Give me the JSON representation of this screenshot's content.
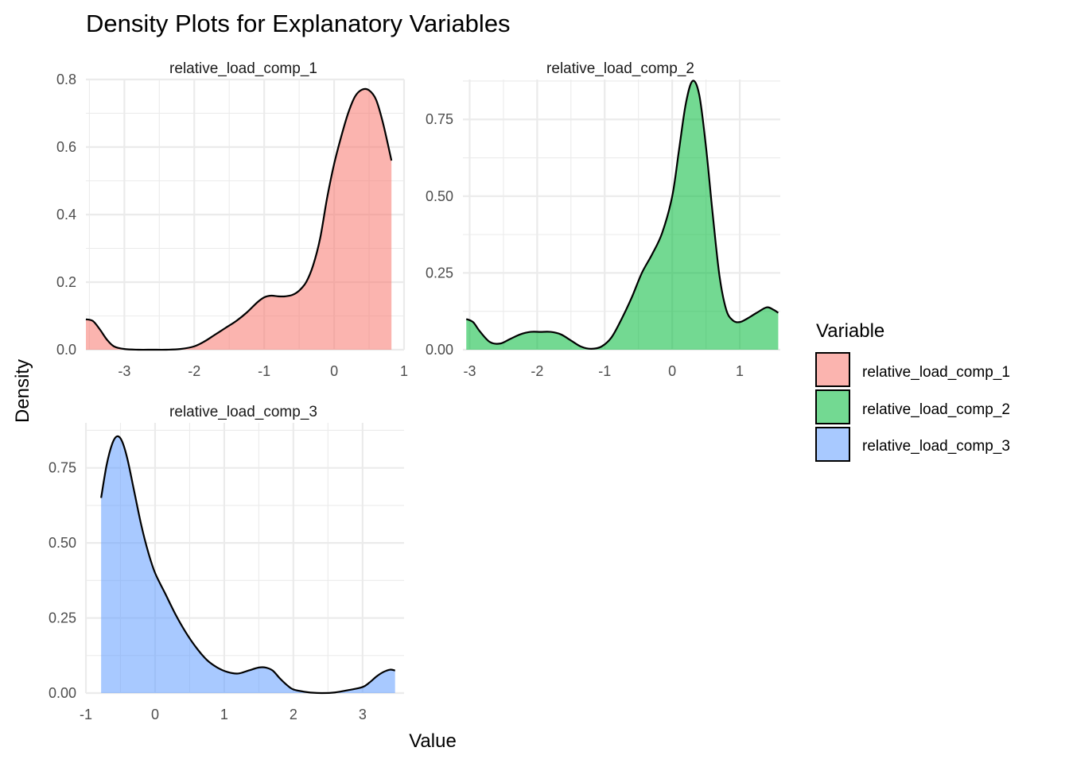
{
  "title": "Density Plots for Explanatory Variables",
  "xlabel": "Value",
  "ylabel": "Density",
  "legend": {
    "title": "Variable",
    "placement": "right",
    "items": [
      {
        "label": "relative_load_comp_1",
        "color": "#F8766D"
      },
      {
        "label": "relative_load_comp_2",
        "color": "#00BA38"
      },
      {
        "label": "relative_load_comp_3",
        "color": "#619CFF"
      }
    ]
  },
  "chart_data": [
    {
      "type": "area",
      "panel_title": "relative_load_comp_1",
      "color": "#F8766D",
      "xlim": [
        -3.55,
        1.0
      ],
      "ylim": [
        0,
        0.8
      ],
      "x_ticks": [
        -3,
        -2,
        -1,
        0,
        1
      ],
      "x_tick_labels": [
        "-3",
        "-2",
        "-1",
        "0",
        "1"
      ],
      "y_ticks": [
        0,
        0.2,
        0.4,
        0.6,
        0.8
      ],
      "y_tick_labels": [
        "0.0",
        "0.2",
        "0.4",
        "0.6",
        "0.8"
      ],
      "x": [
        -3.55,
        -3.45,
        -3.35,
        -3.25,
        -3.15,
        -3.0,
        -2.8,
        -2.6,
        -2.4,
        -2.2,
        -2.0,
        -1.85,
        -1.7,
        -1.55,
        -1.4,
        -1.25,
        -1.1,
        -1.0,
        -0.9,
        -0.8,
        -0.7,
        -0.6,
        -0.5,
        -0.4,
        -0.3,
        -0.2,
        -0.1,
        0.0,
        0.1,
        0.2,
        0.3,
        0.4,
        0.5,
        0.6,
        0.7,
        0.82
      ],
      "y": [
        0.09,
        0.085,
        0.06,
        0.03,
        0.01,
        0.002,
        0.0,
        0.0,
        0.0,
        0.002,
        0.01,
        0.025,
        0.045,
        0.065,
        0.085,
        0.11,
        0.14,
        0.155,
        0.16,
        0.158,
        0.158,
        0.162,
        0.175,
        0.2,
        0.25,
        0.33,
        0.45,
        0.55,
        0.63,
        0.7,
        0.75,
        0.77,
        0.768,
        0.74,
        0.67,
        0.56
      ]
    },
    {
      "type": "area",
      "panel_title": "relative_load_comp_2",
      "color": "#00BA38",
      "xlim": [
        -3.1,
        1.6
      ],
      "ylim": [
        0,
        0.88
      ],
      "x_ticks": [
        -3,
        -2,
        -1,
        0,
        1
      ],
      "x_tick_labels": [
        "-3",
        "-2",
        "-1",
        "0",
        "1"
      ],
      "y_ticks": [
        0,
        0.25,
        0.5,
        0.75
      ],
      "y_tick_labels": [
        "0.00",
        "0.25",
        "0.50",
        "0.75"
      ],
      "x": [
        -3.05,
        -2.95,
        -2.85,
        -2.7,
        -2.55,
        -2.4,
        -2.25,
        -2.1,
        -1.95,
        -1.8,
        -1.65,
        -1.5,
        -1.35,
        -1.2,
        -1.05,
        -0.9,
        -0.75,
        -0.6,
        -0.45,
        -0.3,
        -0.15,
        0.0,
        0.1,
        0.2,
        0.3,
        0.4,
        0.5,
        0.6,
        0.7,
        0.8,
        0.9,
        1.0,
        1.1,
        1.25,
        1.4,
        1.5,
        1.57
      ],
      "y": [
        0.1,
        0.09,
        0.06,
        0.025,
        0.02,
        0.035,
        0.05,
        0.058,
        0.058,
        0.058,
        0.05,
        0.03,
        0.01,
        0.003,
        0.01,
        0.04,
        0.1,
        0.17,
        0.25,
        0.31,
        0.38,
        0.5,
        0.65,
        0.8,
        0.875,
        0.83,
        0.66,
        0.44,
        0.24,
        0.13,
        0.095,
        0.09,
        0.1,
        0.12,
        0.138,
        0.13,
        0.12
      ]
    },
    {
      "type": "area",
      "panel_title": "relative_load_comp_3",
      "color": "#619CFF",
      "xlim": [
        -1.0,
        3.6
      ],
      "ylim": [
        0,
        0.9
      ],
      "x_ticks": [
        -1,
        0,
        1,
        2,
        3
      ],
      "x_tick_labels": [
        "-1",
        "0",
        "1",
        "2",
        "3"
      ],
      "y_ticks": [
        0,
        0.25,
        0.5,
        0.75
      ],
      "y_tick_labels": [
        "0.00",
        "0.25",
        "0.50",
        "0.75"
      ],
      "x": [
        -0.78,
        -0.7,
        -0.62,
        -0.55,
        -0.48,
        -0.4,
        -0.3,
        -0.2,
        -0.1,
        0.0,
        0.15,
        0.3,
        0.45,
        0.6,
        0.75,
        0.9,
        1.05,
        1.2,
        1.35,
        1.5,
        1.6,
        1.7,
        1.8,
        1.9,
        2.0,
        2.2,
        2.4,
        2.6,
        2.8,
        3.0,
        3.1,
        3.2,
        3.3,
        3.4,
        3.47
      ],
      "y": [
        0.65,
        0.76,
        0.83,
        0.855,
        0.84,
        0.78,
        0.67,
        0.56,
        0.47,
        0.4,
        0.33,
        0.26,
        0.2,
        0.15,
        0.11,
        0.085,
        0.07,
        0.065,
        0.075,
        0.085,
        0.085,
        0.075,
        0.05,
        0.028,
        0.012,
        0.003,
        0.0,
        0.002,
        0.01,
        0.02,
        0.035,
        0.055,
        0.07,
        0.078,
        0.075
      ]
    }
  ]
}
